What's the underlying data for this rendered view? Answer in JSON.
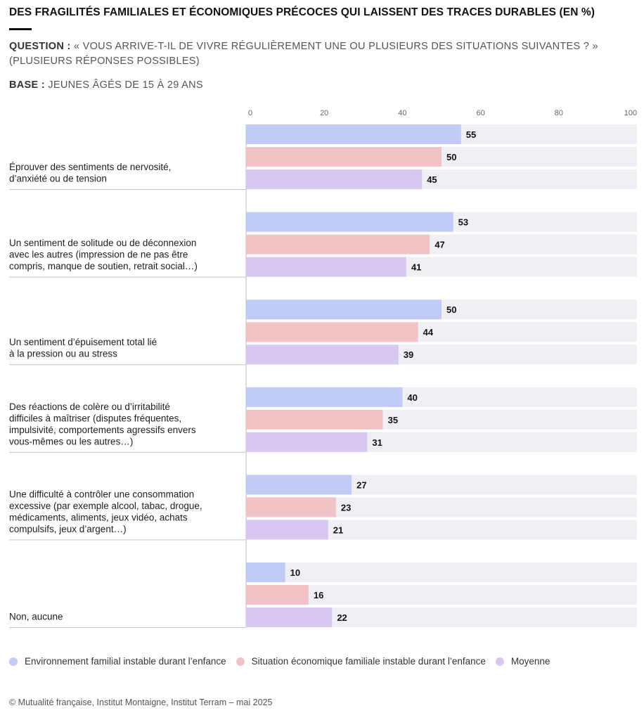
{
  "title": "DES FRAGILITÉS FAMILIALES ET ÉCONOMIQUES PRÉCOCES QUI LAISSENT DES TRACES DURABLES (EN %)",
  "question_label": "QUESTION :",
  "question_text": "« VOUS ARRIVE-T-IL DE VIVRE RÉGULIÈREMENT UNE OU PLUSIEURS DES SITUATIONS SUIVANTES ? »",
  "question_note": "(PLUSIEURS RÉPONSES POSSIBLES)",
  "base_label": "BASE :",
  "base_text": "JEUNES ÂGÉS DE 15 À 29 ANS",
  "source": "© Mutualité française, Institut Montaigne, Institut Terram – mai 2025",
  "chart_data": {
    "type": "bar",
    "orientation": "horizontal",
    "xlim": [
      0,
      100
    ],
    "ticks": [
      0,
      20,
      40,
      60,
      80,
      100
    ],
    "grid": false,
    "legend_position": "bottom",
    "categories": [
      [
        "Éprouver des sentiments de nervosité,",
        "d’anxiété ou de tension"
      ],
      [
        "Un sentiment de solitude ou de déconnexion",
        "avec les autres (impression de ne pas être",
        "compris, manque de soutien, retrait social…)"
      ],
      [
        "Un sentiment d’épuisement total lié",
        "à la pression ou au stress"
      ],
      [
        "Des réactions de colère ou d’irritabilité",
        "difficiles à maîtriser (disputes fréquentes,",
        "impulsivité, comportements agressifs envers",
        "vous-mêmes ou les autres…)"
      ],
      [
        "Une difficulté à contrôler une consommation",
        "excessive (par exemple alcool, tabac, drogue,",
        "médicaments, aliments, jeux vidéo, achats",
        "compulsifs, jeux d’argent…)"
      ],
      [
        "Non, aucune"
      ]
    ],
    "series": [
      {
        "name": "Environnement familial instable durant l’enfance",
        "color": "#c2cbf6",
        "values": [
          55,
          53,
          50,
          40,
          27,
          10
        ]
      },
      {
        "name": "Situation économique familiale instable durant l’enfance",
        "color": "#f0c4c6",
        "values": [
          50,
          47,
          44,
          35,
          23,
          16
        ]
      },
      {
        "name": "Moyenne",
        "color": "#d8c8f1",
        "values": [
          45,
          41,
          39,
          31,
          21,
          22
        ]
      }
    ],
    "track_color": "#efeff5"
  }
}
